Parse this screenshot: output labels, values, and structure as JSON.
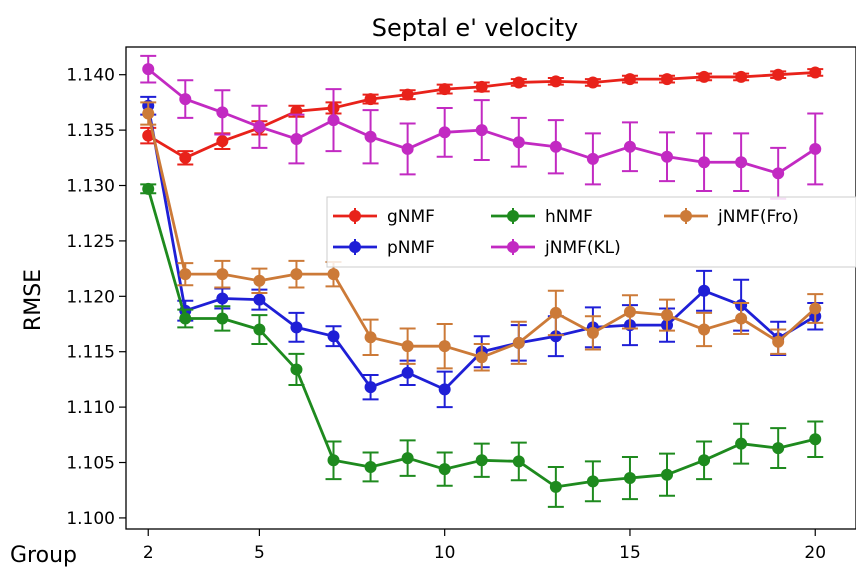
{
  "chart_data": {
    "type": "line",
    "title": "Septal e' velocity",
    "xlabel": "Group",
    "ylabel": "RMSE",
    "x": [
      2,
      3,
      4,
      5,
      6,
      7,
      8,
      9,
      10,
      11,
      12,
      13,
      14,
      15,
      16,
      17,
      18,
      19,
      20
    ],
    "xticks": [
      2,
      5,
      10,
      15,
      20
    ],
    "ylim": [
      1.099,
      1.1425
    ],
    "yticks": [
      1.1,
      1.105,
      1.11,
      1.115,
      1.12,
      1.125,
      1.13,
      1.135,
      1.14
    ],
    "ytick_labels": [
      "1.100",
      "1.105",
      "1.110",
      "1.115",
      "1.120",
      "1.125",
      "1.130",
      "1.135",
      "1.140"
    ],
    "grid": false,
    "legend_position": "center-right",
    "series": [
      {
        "name": "gNMF",
        "color": "#e8221a",
        "values": [
          1.1345,
          1.1325,
          1.134,
          1.1352,
          1.1367,
          1.137,
          1.1378,
          1.1382,
          1.1387,
          1.1389,
          1.1393,
          1.1394,
          1.1393,
          1.1396,
          1.1396,
          1.1398,
          1.1398,
          1.14,
          1.1402
        ],
        "errors": [
          0.0007,
          0.0006,
          0.0007,
          0.0006,
          0.0005,
          0.0005,
          0.0004,
          0.0004,
          0.0004,
          0.0004,
          0.0003,
          0.0003,
          0.0003,
          0.0003,
          0.0003,
          0.0003,
          0.0003,
          0.0003,
          0.0003
        ]
      },
      {
        "name": "pNMF",
        "color": "#1f1fd6",
        "values": [
          1.1372,
          1.1187,
          1.1198,
          1.1197,
          1.1172,
          1.1164,
          1.1118,
          1.1131,
          1.1116,
          1.115,
          1.1158,
          1.1164,
          1.1172,
          1.1174,
          1.1174,
          1.1205,
          1.1192,
          1.1162,
          1.1182
        ],
        "errors": [
          0.0008,
          0.0009,
          0.0009,
          0.0009,
          0.0013,
          0.0009,
          0.0011,
          0.0011,
          0.0016,
          0.0014,
          0.0016,
          0.0018,
          0.0018,
          0.0018,
          0.0015,
          0.0018,
          0.0023,
          0.0015,
          0.0012
        ]
      },
      {
        "name": "hNMF",
        "color": "#1e8a1e",
        "values": [
          1.1297,
          1.118,
          1.118,
          1.117,
          1.1134,
          1.1052,
          1.1046,
          1.1054,
          1.1044,
          1.1052,
          1.1051,
          1.1028,
          1.1033,
          1.1036,
          1.1039,
          1.1052,
          1.1067,
          1.1063,
          1.1071
        ],
        "errors": [
          0.0004,
          0.0008,
          0.0011,
          0.0013,
          0.0014,
          0.0017,
          0.0013,
          0.0016,
          0.0015,
          0.0015,
          0.0017,
          0.0018,
          0.0018,
          0.0019,
          0.0019,
          0.0017,
          0.0018,
          0.0018,
          0.0016
        ]
      },
      {
        "name": "jNMF(KL)",
        "color": "#c22ac2",
        "values": [
          1.1405,
          1.1378,
          1.1366,
          1.1353,
          1.1342,
          1.1359,
          1.1344,
          1.1333,
          1.1348,
          1.135,
          1.1339,
          1.1335,
          1.1324,
          1.1335,
          1.1326,
          1.1321,
          1.1321,
          1.1311,
          1.1333
        ],
        "errors": [
          0.0012,
          0.0017,
          0.002,
          0.0019,
          0.0022,
          0.0028,
          0.0024,
          0.0023,
          0.0022,
          0.0027,
          0.0022,
          0.0024,
          0.0023,
          0.0022,
          0.0022,
          0.0026,
          0.0026,
          0.0023,
          0.0032
        ]
      },
      {
        "name": "jNMF(Fro)",
        "color": "#cc7a38",
        "values": [
          1.1365,
          1.122,
          1.122,
          1.1214,
          1.122,
          1.122,
          1.1163,
          1.1155,
          1.1155,
          1.1145,
          1.1158,
          1.1185,
          1.1167,
          1.1186,
          1.1183,
          1.117,
          1.118,
          1.1159,
          1.1189
        ],
        "errors": [
          0.001,
          0.001,
          0.0012,
          0.0011,
          0.0012,
          0.0011,
          0.0016,
          0.0016,
          0.002,
          0.0012,
          0.0019,
          0.002,
          0.0015,
          0.0015,
          0.0014,
          0.0015,
          0.0014,
          0.0011,
          0.0013
        ]
      }
    ]
  }
}
